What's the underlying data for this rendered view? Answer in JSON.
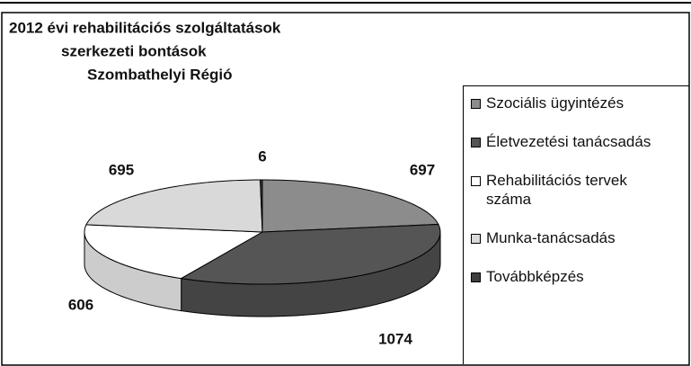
{
  "chart_data": {
    "type": "pie",
    "title": [
      "2012 évi rehabilitációs szolgáltatások",
      "szerkezeti bontások",
      "Szombathelyi Régió"
    ],
    "categories": [
      "Szociális ügyintézés",
      "Életvezetési tanácsadás",
      "Rehabilitációs tervek száma",
      "Munka-tanácsadás",
      "Továbbképzés"
    ],
    "values": [
      697,
      1074,
      606,
      695,
      6
    ],
    "colors": [
      "#8c8c8c",
      "#555555",
      "#ffffff",
      "#d9d9d9",
      "#3f3f3f"
    ]
  }
}
